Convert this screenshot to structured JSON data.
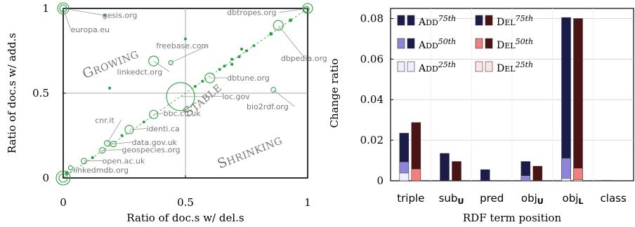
{
  "left_chart": {
    "type": "scatter",
    "xlabel": "Ratio of doc.s w/ del.s",
    "ylabel": "Ratio of doc.s w/ add.s",
    "xlim": [
      0,
      1
    ],
    "ylim": [
      0,
      1
    ],
    "x_ticks": [
      {
        "value": 0,
        "label": "0"
      },
      {
        "value": 0.5,
        "label": "0.5"
      },
      {
        "value": 1,
        "label": "1"
      }
    ],
    "y_ticks": [
      {
        "value": 0,
        "label": "0"
      },
      {
        "value": 0.5,
        "label": "0.5"
      },
      {
        "value": 1,
        "label": "1"
      }
    ],
    "regions": [
      {
        "id": "growing",
        "label": "Growing",
        "x": 0.2,
        "y": 0.65,
        "rotate": -22
      },
      {
        "id": "stable",
        "label": "Stable",
        "x": 0.58,
        "y": 0.44,
        "rotate": -40
      },
      {
        "id": "shrinking",
        "label": "Shrinking",
        "x": 0.77,
        "y": 0.13,
        "rotate": -22
      }
    ],
    "points": [
      {
        "x": 0.0,
        "y": 0.0,
        "r": 10
      },
      {
        "x": 0.0,
        "y": 0.0,
        "r": 6
      },
      {
        "x": 0.0,
        "y": 1.0,
        "r": 8
      },
      {
        "x": 0.0,
        "y": 1.0,
        "r": 5
      },
      {
        "x": 1.0,
        "y": 1.0,
        "r": 7
      },
      {
        "x": 0.995,
        "y": 0.995,
        "r": 4
      },
      {
        "x": 0.88,
        "y": 0.9,
        "r": 7
      },
      {
        "x": 0.37,
        "y": 0.69,
        "r": 7
      },
      {
        "x": 0.44,
        "y": 0.68,
        "r": 3
      },
      {
        "x": 0.6,
        "y": 0.59,
        "r": 7
      },
      {
        "x": 0.48,
        "y": 0.48,
        "r": 20
      },
      {
        "x": 0.37,
        "y": 0.375,
        "r": 6
      },
      {
        "x": 0.27,
        "y": 0.285,
        "r": 6
      },
      {
        "x": 0.18,
        "y": 0.205,
        "r": 4
      },
      {
        "x": 0.205,
        "y": 0.2,
        "r": 4
      },
      {
        "x": 0.16,
        "y": 0.163,
        "r": 4
      },
      {
        "x": 0.085,
        "y": 0.1,
        "r": 4
      },
      {
        "x": 0.03,
        "y": 0.06,
        "r": 3
      },
      {
        "x": 0.015,
        "y": 0.03,
        "r": 2
      },
      {
        "x": 0.93,
        "y": 0.93,
        "r": 2
      },
      {
        "x": 0.85,
        "y": 0.85,
        "r": 2
      },
      {
        "x": 0.78,
        "y": 0.78,
        "r": 1.5
      },
      {
        "x": 0.75,
        "y": 0.75,
        "r": 1.5
      },
      {
        "x": 0.72,
        "y": 0.715,
        "r": 1.5
      },
      {
        "x": 0.69,
        "y": 0.7,
        "r": 1.5
      },
      {
        "x": 0.66,
        "y": 0.66,
        "r": 1.5
      },
      {
        "x": 0.64,
        "y": 0.64,
        "r": 1.5
      },
      {
        "x": 0.57,
        "y": 0.57,
        "r": 1.5
      },
      {
        "x": 0.54,
        "y": 0.54,
        "r": 1.5
      },
      {
        "x": 0.33,
        "y": 0.33,
        "r": 1.5
      },
      {
        "x": 0.24,
        "y": 0.25,
        "r": 1.5
      },
      {
        "x": 0.12,
        "y": 0.12,
        "r": 1.5
      },
      {
        "x": 0.19,
        "y": 0.53,
        "r": 1.5
      },
      {
        "x": 0.17,
        "y": 0.96,
        "r": 1.5
      },
      {
        "x": 0.5,
        "y": 0.82,
        "r": 1.5
      },
      {
        "x": 0.69,
        "y": 0.67,
        "r": 1.5
      },
      {
        "x": 0.73,
        "y": 0.76,
        "r": 1.5
      }
    ],
    "annotations": [
      {
        "label": "gesis.org",
        "x": 0.0,
        "y": 1.0,
        "tx": 0.16,
        "ty": 0.945
      },
      {
        "label": "europa.eu",
        "x": 0.0,
        "y": 1.0,
        "tx": 0.03,
        "ty": 0.86
      },
      {
        "label": "dbtropes.org",
        "x": 1.0,
        "y": 1.0,
        "tx": 0.67,
        "ty": 0.96
      },
      {
        "label": "dbpedia.org",
        "x": 0.88,
        "y": 0.9,
        "tx": 0.89,
        "ty": 0.69
      },
      {
        "label": "freebase.com",
        "x": 0.44,
        "y": 0.68,
        "tx": 0.38,
        "ty": 0.765
      },
      {
        "label": "linkedct.org",
        "x": 0.37,
        "y": 0.69,
        "tx": 0.22,
        "ty": 0.61
      },
      {
        "label": "dbtune.org",
        "x": 0.6,
        "y": 0.59,
        "tx": 0.67,
        "ty": 0.575
      },
      {
        "label": "loc.gov",
        "x": 0.48,
        "y": 0.48,
        "tx": 0.65,
        "ty": 0.465
      },
      {
        "label": "bio2rdf.org",
        "x": 0.86,
        "y": 0.52,
        "tx": 0.75,
        "ty": 0.405
      },
      {
        "label": "bbc.co.uk",
        "x": 0.37,
        "y": 0.375,
        "tx": 0.41,
        "ty": 0.365
      },
      {
        "label": "cnr.it",
        "x": 0.18,
        "y": 0.205,
        "tx": 0.13,
        "ty": 0.325
      },
      {
        "label": "identi.ca",
        "x": 0.27,
        "y": 0.285,
        "tx": 0.34,
        "ty": 0.275
      },
      {
        "label": "data.gov.uk",
        "x": 0.2,
        "y": 0.2,
        "tx": 0.28,
        "ty": 0.195
      },
      {
        "label": "geospecies.org",
        "x": 0.16,
        "y": 0.163,
        "tx": 0.24,
        "ty": 0.15
      },
      {
        "label": "open.ac.uk",
        "x": 0.085,
        "y": 0.1,
        "tx": 0.16,
        "ty": 0.085
      },
      {
        "label": "linkedmdb.org",
        "x": 0.0,
        "y": 0.0,
        "tx": 0.04,
        "ty": 0.03
      }
    ],
    "bio2rdf_point": {
      "x": 0.86,
      "y": 0.52
    }
  },
  "right_chart": {
    "type": "bar",
    "ylabel": "Change ratio",
    "xlabel": "RDF term position",
    "ylim": [
      0,
      0.085
    ],
    "y_ticks": [
      {
        "value": 0,
        "label": "0"
      },
      {
        "value": 0.02,
        "label": "0.02"
      },
      {
        "value": 0.04,
        "label": "0.04"
      },
      {
        "value": 0.06,
        "label": "0.06"
      },
      {
        "value": 0.08,
        "label": "0.08"
      }
    ],
    "categories": [
      {
        "id": "triple",
        "base": "triple",
        "sub": ""
      },
      {
        "id": "subU",
        "base": "sub",
        "sub": "U"
      },
      {
        "id": "pred",
        "base": "pred",
        "sub": ""
      },
      {
        "id": "objU",
        "base": "obj",
        "sub": "U"
      },
      {
        "id": "objL",
        "base": "obj",
        "sub": "L"
      },
      {
        "id": "class",
        "base": "class",
        "sub": ""
      }
    ],
    "series": [
      {
        "name": "Add",
        "percentile": "75th",
        "type": "add",
        "level": 75,
        "color": "#1c1c4a",
        "values": [
          0.0235,
          0.0135,
          0.0055,
          0.0095,
          0.0805,
          0.0002
        ]
      },
      {
        "name": "Add",
        "percentile": "50th",
        "type": "add",
        "level": 50,
        "color": "#8d86d6",
        "values": [
          0.0093,
          0.0,
          0.0,
          0.0025,
          0.0111,
          0.0
        ]
      },
      {
        "name": "Add",
        "percentile": "25th",
        "type": "add",
        "level": 25,
        "color": "#eeeeff",
        "values": [
          0.0038,
          0.0,
          0.0,
          0.0,
          0.0012,
          0.0
        ]
      },
      {
        "name": "Del",
        "percentile": "75th",
        "type": "del",
        "level": 75,
        "color": "#4a1414",
        "values": [
          0.0287,
          0.0095,
          0.0,
          0.0072,
          0.08,
          0.0
        ]
      },
      {
        "name": "Del",
        "percentile": "50th",
        "type": "del",
        "level": 50,
        "color": "#f08080",
        "values": [
          0.0058,
          0.0,
          0.0,
          0.0,
          0.0062,
          0.0
        ]
      },
      {
        "name": "Del",
        "percentile": "25th",
        "type": "del",
        "level": 25,
        "color": "#ffe4e4",
        "values": [
          0.0,
          0.0,
          0.0,
          0.0,
          0.0005,
          0.0
        ]
      }
    ],
    "legend": {
      "placement": "top-left",
      "entries": [
        {
          "name": "Add",
          "percentile": "75th",
          "colors": [
            "#1c1c4a",
            "#1c1c4a"
          ]
        },
        {
          "name": "Del",
          "percentile": "75th",
          "colors": [
            "#1c1c4a",
            "#4a1414"
          ]
        },
        {
          "name": "Add",
          "percentile": "50th",
          "colors": [
            "#8d86d6",
            "#1c1c4a"
          ]
        },
        {
          "name": "Del",
          "percentile": "50th",
          "colors": [
            "#f08080",
            "#4a1414"
          ]
        },
        {
          "name": "Add",
          "percentile": "25th",
          "colors": [
            "#eeeeff",
            "#eeeeff"
          ]
        },
        {
          "name": "Del",
          "percentile": "25th",
          "colors": [
            "#ffe4e4",
            "#ffe4e4"
          ]
        }
      ]
    }
  },
  "colors": {
    "scatter_green": "#2ea043",
    "annotation_grey": "#777777",
    "grid": "#cccccc"
  }
}
